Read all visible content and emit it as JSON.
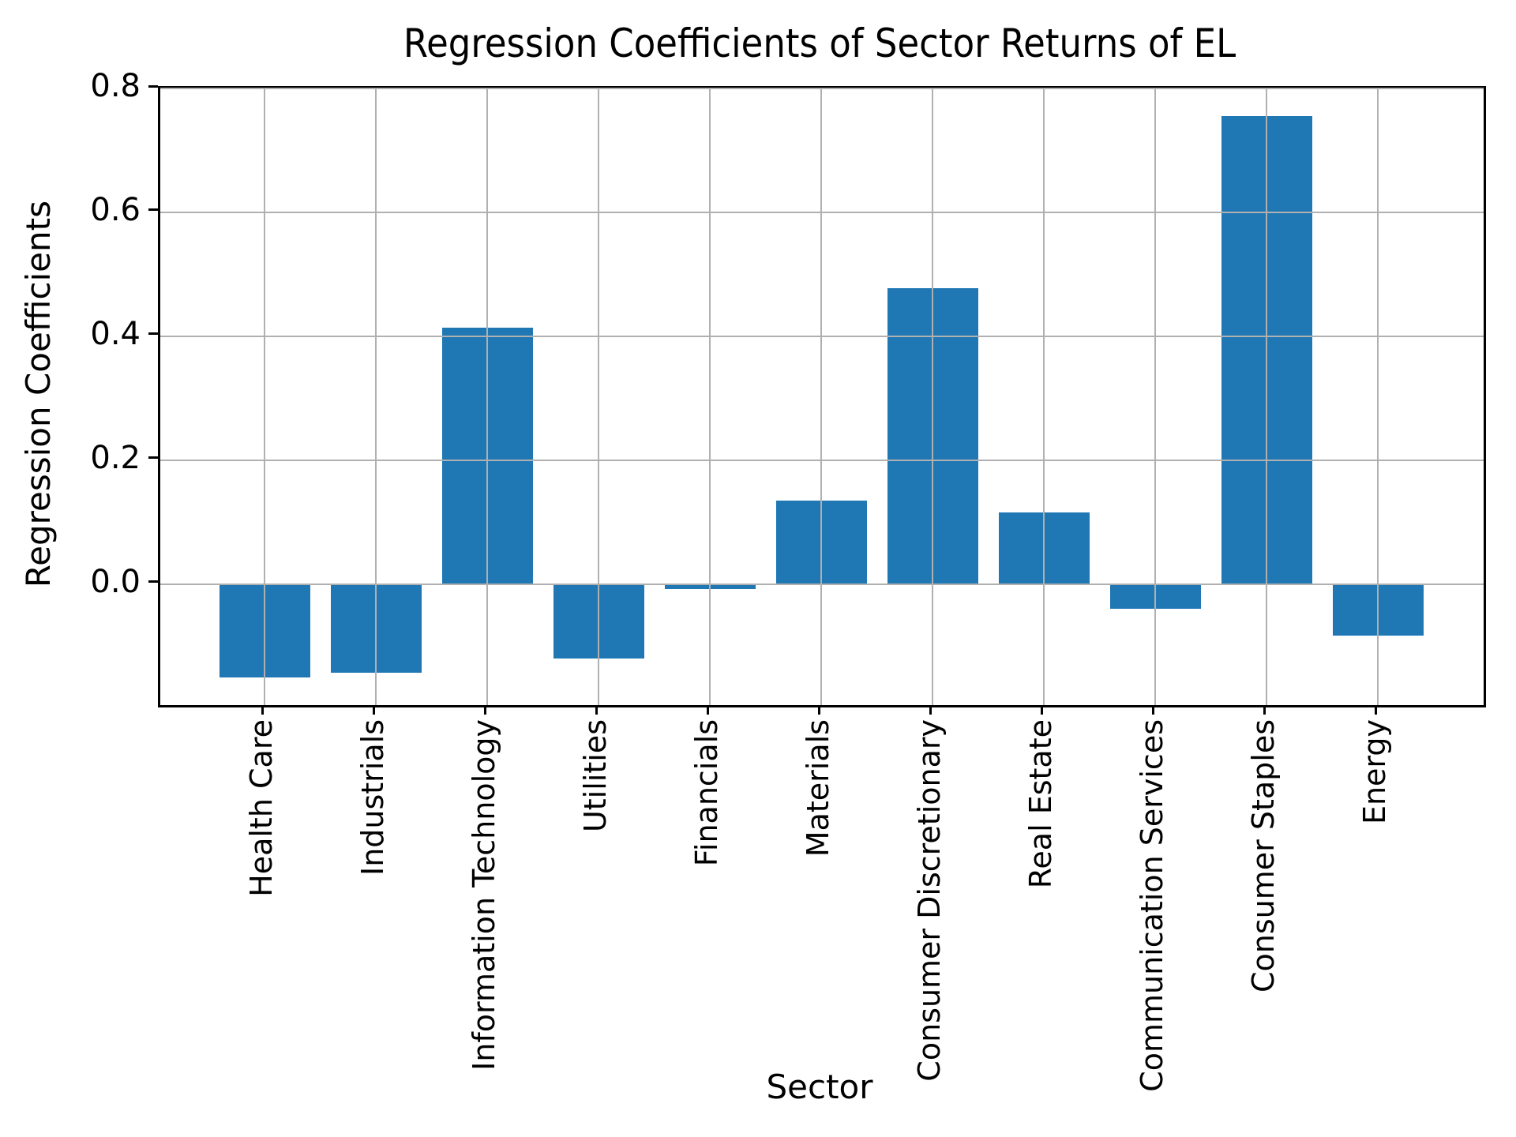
{
  "chart_data": {
    "type": "bar",
    "title": "Regression Coefficients of Sector Returns of EL",
    "xlabel": "Sector",
    "ylabel": "Regression Coefficients",
    "categories": [
      "Health Care",
      "Industrials",
      "Information Technology",
      "Utilities",
      "Financials",
      "Materials",
      "Consumer Discretionary",
      "Real Estate",
      "Communication Services",
      "Consumer Staples",
      "Energy"
    ],
    "values": [
      -0.15,
      -0.143,
      0.414,
      -0.12,
      -0.008,
      0.135,
      0.478,
      0.116,
      -0.039,
      0.755,
      -0.083
    ],
    "ylim": [
      -0.195,
      0.8
    ],
    "yticks": [
      0.0,
      0.2,
      0.4,
      0.6,
      0.8
    ],
    "ytick_labels": [
      "0.0",
      "0.2",
      "0.4",
      "0.6",
      "0.8"
    ],
    "bar_color": "#1f77b4",
    "grid": true,
    "grid_color": "#b0b0b0",
    "grid_position": "above-bars",
    "legend": null,
    "background": "#ffffff",
    "axes_edge_color": "#000000"
  }
}
